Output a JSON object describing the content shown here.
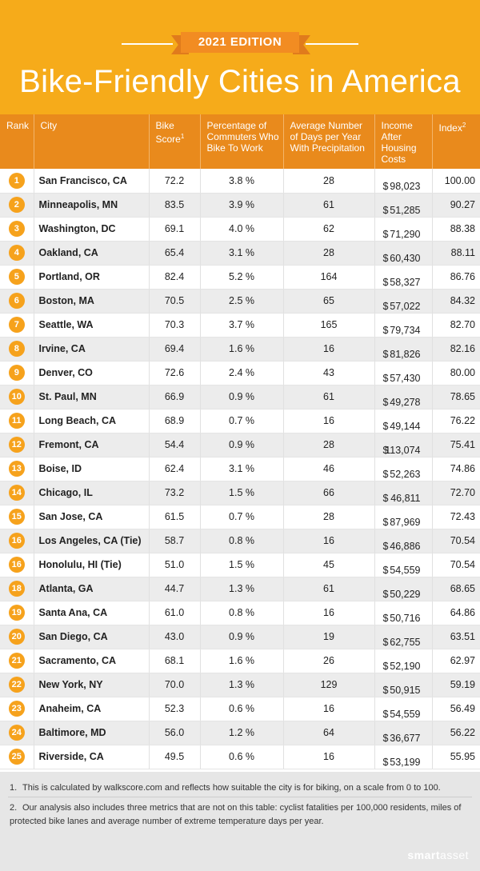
{
  "header": {
    "edition": "2021 EDITION",
    "title": "Bike-Friendly Cities in America"
  },
  "table": {
    "columns": {
      "rank": "Rank",
      "city": "City",
      "bike_score": "Bike Score",
      "bike_score_sup": "1",
      "commuters": "Percentage of Commuters Who Bike To Work",
      "precip": "Average Number of Days per Year With Precipitation",
      "income": "Income After Housing Costs",
      "index": "Index",
      "index_sup": "2"
    },
    "rows": [
      {
        "rank": "1",
        "city": "San Francisco, CA",
        "bike_score": "72.2",
        "commuters": "3.8 %",
        "precip": "28",
        "income": "98,023",
        "index": "100.00"
      },
      {
        "rank": "2",
        "city": "Minneapolis, MN",
        "bike_score": "83.5",
        "commuters": "3.9 %",
        "precip": "61",
        "income": "51,285",
        "index": "90.27"
      },
      {
        "rank": "3",
        "city": "Washington, DC",
        "bike_score": "69.1",
        "commuters": "4.0 %",
        "precip": "62",
        "income": "71,290",
        "index": "88.38"
      },
      {
        "rank": "4",
        "city": "Oakland, CA",
        "bike_score": "65.4",
        "commuters": "3.1 %",
        "precip": "28",
        "income": "60,430",
        "index": "88.11"
      },
      {
        "rank": "5",
        "city": "Portland, OR",
        "bike_score": "82.4",
        "commuters": "5.2 %",
        "precip": "164",
        "income": "58,327",
        "index": "86.76"
      },
      {
        "rank": "6",
        "city": "Boston, MA",
        "bike_score": "70.5",
        "commuters": "2.5 %",
        "precip": "65",
        "income": "57,022",
        "index": "84.32"
      },
      {
        "rank": "7",
        "city": "Seattle, WA",
        "bike_score": "70.3",
        "commuters": "3.7 %",
        "precip": "165",
        "income": "79,734",
        "index": "82.70"
      },
      {
        "rank": "8",
        "city": "Irvine, CA",
        "bike_score": "69.4",
        "commuters": "1.6 %",
        "precip": "16",
        "income": "81,826",
        "index": "82.16"
      },
      {
        "rank": "9",
        "city": "Denver, CO",
        "bike_score": "72.6",
        "commuters": "2.4 %",
        "precip": "43",
        "income": "57,430",
        "index": "80.00"
      },
      {
        "rank": "10",
        "city": "St. Paul, MN",
        "bike_score": "66.9",
        "commuters": "0.9 %",
        "precip": "61",
        "income": "49,278",
        "index": "78.65"
      },
      {
        "rank": "11",
        "city": "Long Beach, CA",
        "bike_score": "68.9",
        "commuters": "0.7 %",
        "precip": "16",
        "income": "49,144",
        "index": "76.22"
      },
      {
        "rank": "12",
        "city": "Fremont, CA",
        "bike_score": "54.4",
        "commuters": "0.9 %",
        "precip": "28",
        "income": "113,074",
        "index": "75.41"
      },
      {
        "rank": "13",
        "city": "Boise, ID",
        "bike_score": "62.4",
        "commuters": "3.1 %",
        "precip": "46",
        "income": "52,263",
        "index": "74.86"
      },
      {
        "rank": "14",
        "city": "Chicago, IL",
        "bike_score": "73.2",
        "commuters": "1.5 %",
        "precip": "66",
        "income": "46,811",
        "index": "72.70"
      },
      {
        "rank": "15",
        "city": "San Jose, CA",
        "bike_score": "61.5",
        "commuters": "0.7 %",
        "precip": "28",
        "income": "87,969",
        "index": "72.43"
      },
      {
        "rank": "16",
        "city": "Los Angeles, CA (Tie)",
        "bike_score": "58.7",
        "commuters": "0.8 %",
        "precip": "16",
        "income": "46,886",
        "index": "70.54"
      },
      {
        "rank": "16",
        "city": "Honolulu, HI (Tie)",
        "bike_score": "51.0",
        "commuters": "1.5 %",
        "precip": "45",
        "income": "54,559",
        "index": "70.54"
      },
      {
        "rank": "18",
        "city": "Atlanta, GA",
        "bike_score": "44.7",
        "commuters": "1.3 %",
        "precip": "61",
        "income": "50,229",
        "index": "68.65"
      },
      {
        "rank": "19",
        "city": "Santa Ana, CA",
        "bike_score": "61.0",
        "commuters": "0.8 %",
        "precip": "16",
        "income": "50,716",
        "index": "64.86"
      },
      {
        "rank": "20",
        "city": "San Diego, CA",
        "bike_score": "43.0",
        "commuters": "0.9 %",
        "precip": "19",
        "income": "62,755",
        "index": "63.51"
      },
      {
        "rank": "21",
        "city": "Sacramento, CA",
        "bike_score": "68.1",
        "commuters": "1.6 %",
        "precip": "26",
        "income": "52,190",
        "index": "62.97"
      },
      {
        "rank": "22",
        "city": "New York, NY",
        "bike_score": "70.0",
        "commuters": "1.3 %",
        "precip": "129",
        "income": "50,915",
        "index": "59.19"
      },
      {
        "rank": "23",
        "city": "Anaheim, CA",
        "bike_score": "52.3",
        "commuters": "0.6 %",
        "precip": "16",
        "income": "54,559",
        "index": "56.49"
      },
      {
        "rank": "24",
        "city": "Baltimore, MD",
        "bike_score": "56.0",
        "commuters": "1.2 %",
        "precip": "64",
        "income": "36,677",
        "index": "56.22"
      },
      {
        "rank": "25",
        "city": "Riverside, CA",
        "bike_score": "49.5",
        "commuters": "0.6 %",
        "precip": "16",
        "income": "53,199",
        "index": "55.95"
      }
    ],
    "currency_symbol": "$"
  },
  "footnotes": {
    "n1_num": "1.",
    "n1": "This is calculated by walkscore.com and reflects how suitable the city is for biking, on a scale from 0 to 100.",
    "n2_num": "2.",
    "n2": "Our analysis also includes three metrics that are not on this table: cyclist fatalities per 100,000 residents, miles of protected bike lanes and average number of extreme temperature days per year."
  },
  "brand": {
    "part1": "smart",
    "part2": "asset"
  },
  "colors": {
    "header_bg": "#f6ab1a",
    "table_header_bg": "#e98a1c",
    "rank_badge": "#f6a21c"
  }
}
